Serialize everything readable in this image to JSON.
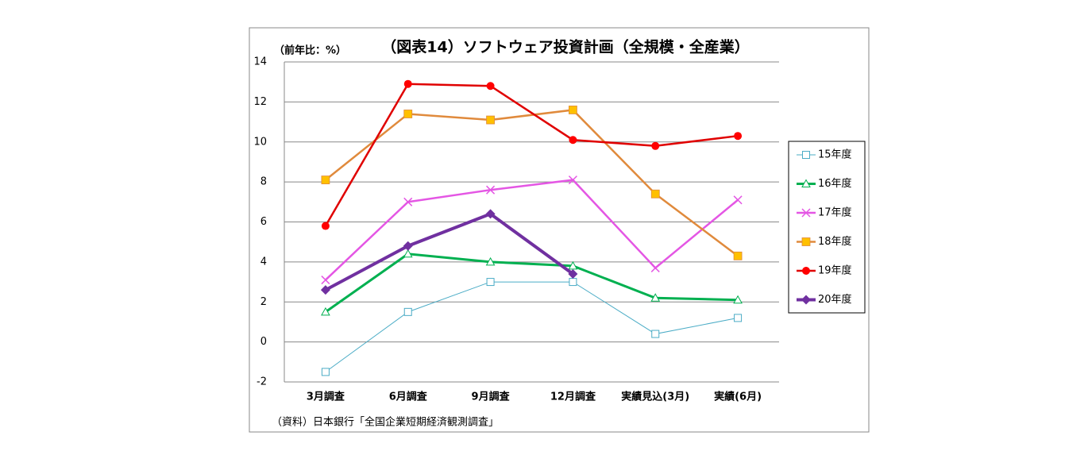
{
  "chart_data": {
    "type": "line",
    "title": "（図表14）ソフトウェア投資計画（全規模・全産業）",
    "y_label": "（前年比：%）",
    "source": "（資料）日本銀行「全国企業短期経済観測調査」",
    "categories": [
      "3月調査",
      "6月調査",
      "9月調査",
      "12月調査",
      "実績見込(3月)",
      "実績(6月)"
    ],
    "ylim": [
      -2,
      14
    ],
    "yticks": [
      -2,
      0,
      2,
      4,
      6,
      8,
      10,
      12,
      14
    ],
    "grid": true,
    "series": [
      {
        "name": "15年度",
        "color": "#4bacc6",
        "marker": "square-open",
        "marker_color": "#4bacc6",
        "values": [
          -1.5,
          1.5,
          3.0,
          3.0,
          0.4,
          1.2
        ]
      },
      {
        "name": "16年度",
        "color": "#00b050",
        "marker": "triangle-open",
        "marker_color": "#00b050",
        "values": [
          1.5,
          4.4,
          4.0,
          3.8,
          2.2,
          2.1
        ]
      },
      {
        "name": "17年度",
        "color": "#e456e4",
        "marker": "x",
        "marker_color": "#e456e4",
        "values": [
          3.1,
          7.0,
          7.6,
          8.1,
          3.7,
          7.1
        ]
      },
      {
        "name": "18年度",
        "color": "#e08a3c",
        "marker": "square",
        "marker_color": "#ffc000",
        "values": [
          8.1,
          11.4,
          11.1,
          11.6,
          7.4,
          4.3
        ]
      },
      {
        "name": "19年度",
        "color": "#e00000",
        "marker": "circle",
        "marker_color": "#ff0000",
        "values": [
          5.8,
          12.9,
          12.8,
          10.1,
          9.8,
          10.3
        ]
      },
      {
        "name": "20年度",
        "color": "#7030a0",
        "marker": "diamond",
        "marker_color": "#7030a0",
        "values": [
          2.6,
          4.8,
          6.4,
          3.4,
          null,
          null
        ]
      }
    ]
  }
}
